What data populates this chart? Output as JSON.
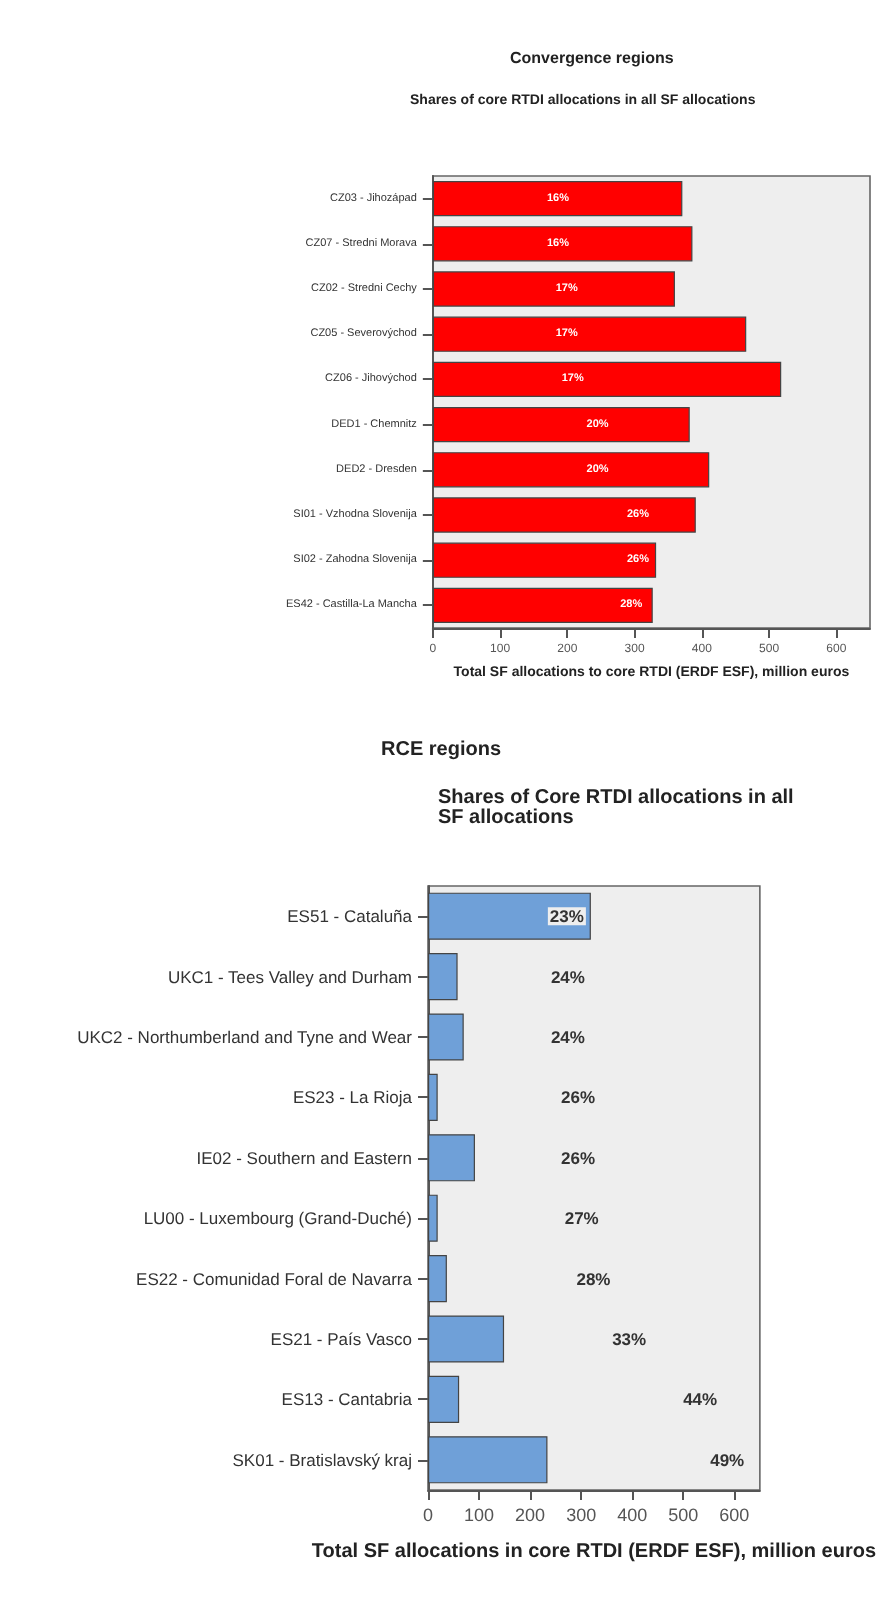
{
  "chart_data": [
    {
      "type": "bar",
      "orientation": "horizontal",
      "title": "Convergence regions",
      "subtitle": "Shares of core RTDI allocations in all SF allocations",
      "xlabel": "Total SF allocations to core RTDI (ERDF ESF), million euros",
      "categories": [
        "CZ03 - Jihozápad",
        "CZ07 - Stredni Morava",
        "CZ02 - Stredni Cechy",
        "CZ05 - Severovýchod",
        "CZ06 - Jihovýchod",
        "DED1 - Chemnitz",
        "DED2 - Dresden",
        "SI01 - Vzhodna Slovenija",
        "SI02 - Zahodna Slovenija",
        "ES42 - Castilla-La Mancha"
      ],
      "series": [
        {
          "color": "#ff0000",
          "values": [
            371,
            386,
            360,
            466,
            518,
            382,
            411,
            391,
            332,
            327
          ]
        }
      ],
      "annotations": [
        {
          "text": "16%",
          "x": 186,
          "y": "CZ03 - Jihozápad"
        },
        {
          "text": "16%",
          "x": 186,
          "y": "CZ07 - Stredni Morava"
        },
        {
          "text": "17%",
          "x": 199,
          "y": "CZ02 - Stredni Cechy"
        },
        {
          "text": "17%",
          "x": 199,
          "y": "CZ05 - Severovýchod"
        },
        {
          "text": "17%",
          "x": 208,
          "y": "CZ06 - Jihovýchod"
        },
        {
          "text": "20%",
          "x": 245,
          "y": "DED1 - Chemnitz"
        },
        {
          "text": "20%",
          "x": 245,
          "y": "DED2 - Dresden"
        },
        {
          "text": "26%",
          "x": 305,
          "y": "SI01 - Vzhodna Slovenija"
        },
        {
          "text": "26%",
          "x": 305,
          "y": "SI02 - Zahodna Slovenija"
        },
        {
          "text": "28%",
          "x": 295,
          "y": "ES42 - Castilla-La Mancha"
        }
      ],
      "xlim": [
        0,
        650
      ],
      "xticks": [
        0,
        100,
        200,
        300,
        400,
        500,
        600
      ],
      "grid": false
    },
    {
      "type": "bar",
      "orientation": "horizontal",
      "title": "RCE regions",
      "subtitle": "Shares of Core RTDI allocations in all SF allocations",
      "xlabel": "Total SF allocations in core RTDI (ERDF ESF), million euros",
      "categories": [
        "ES51 - Cataluña",
        "UKC1 - Tees Valley and Durham",
        "UKC2 - Northumberland and Tyne and Wear",
        "ES23 - La Rioja",
        "IE02 - Southern and Eastern",
        "LU00 - Luxembourg (Grand-Duché)",
        "ES22 - Comunidad Foral de Navarra",
        "ES21 - País Vasco",
        "ES13 - Cantabria",
        "SK01 - Bratislavský kraj"
      ],
      "series": [
        {
          "color": "#6fa0d8",
          "values": [
            319,
            58,
            70,
            19,
            92,
            19,
            37,
            149,
            61,
            234
          ]
        }
      ],
      "annotations": [
        {
          "text": "23%",
          "x": 272,
          "y": "ES51 - Cataluña"
        },
        {
          "text": "24%",
          "x": 274,
          "y": "UKC1 - Tees Valley and Durham"
        },
        {
          "text": "24%",
          "x": 274,
          "y": "UKC2 - Northumberland and Tyne and Wear"
        },
        {
          "text": "26%",
          "x": 294,
          "y": "ES23 - La Rioja"
        },
        {
          "text": "26%",
          "x": 294,
          "y": "IE02 - Southern and Eastern"
        },
        {
          "text": "27%",
          "x": 301,
          "y": "LU00 - Luxembourg (Grand-Duché)"
        },
        {
          "text": "28%",
          "x": 324,
          "y": "ES22 - Comunidad Foral de Navarra"
        },
        {
          "text": "33%",
          "x": 394,
          "y": "ES21 - País Vasco"
        },
        {
          "text": "44%",
          "x": 533,
          "y": "ES13 - Cantabria"
        },
        {
          "text": "49%",
          "x": 586,
          "y": "SK01 - Bratislavský kraj"
        }
      ],
      "xlim": [
        0,
        650
      ],
      "xticks": [
        0,
        100,
        200,
        300,
        400,
        500,
        600
      ],
      "grid": false
    }
  ]
}
